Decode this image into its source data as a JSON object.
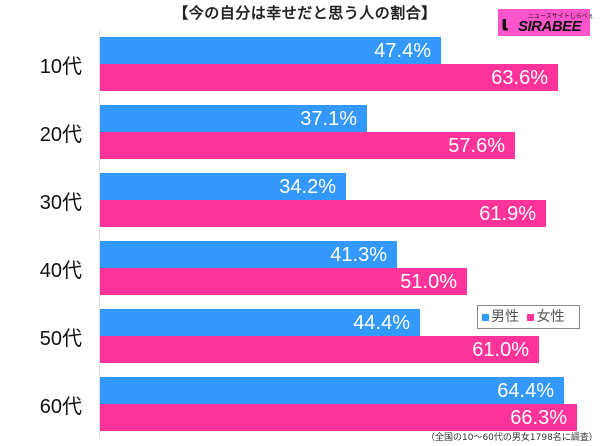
{
  "title": "【今の自分は幸せだと思う人の割合】",
  "logo": {
    "tagline": "ニュースサイトしらべぇ",
    "brand": "SIRABEE"
  },
  "legend": {
    "male": "男性",
    "female": "女性"
  },
  "note": "（全国の10〜60代の男女1798名に調査）",
  "colors": {
    "male": "#3399ff",
    "female": "#ff3399"
  },
  "rows": [
    {
      "label": "10代",
      "male": "47.4%",
      "female": "63.6%"
    },
    {
      "label": "20代",
      "male": "37.1%",
      "female": "57.6%"
    },
    {
      "label": "30代",
      "male": "34.2%",
      "female": "61.9%"
    },
    {
      "label": "40代",
      "male": "41.3%",
      "female": "51.0%"
    },
    {
      "label": "50代",
      "male": "44.4%",
      "female": "61.0%"
    },
    {
      "label": "60代",
      "male": "64.4%",
      "female": "66.3%"
    }
  ],
  "chart_data": {
    "type": "bar",
    "orientation": "horizontal",
    "title": "【今の自分は幸せだと思う人の割合】",
    "categories": [
      "10代",
      "20代",
      "30代",
      "40代",
      "50代",
      "60代"
    ],
    "series": [
      {
        "name": "男性",
        "color": "#3399ff",
        "values": [
          47.4,
          37.1,
          34.2,
          41.3,
          44.4,
          64.4
        ]
      },
      {
        "name": "女性",
        "color": "#ff3399",
        "values": [
          63.6,
          57.6,
          61.9,
          51.0,
          61.0,
          66.3
        ]
      }
    ],
    "xlabel": "",
    "ylabel": "",
    "unit": "%",
    "grid": false,
    "legend_position": "right, inside near 50代",
    "annotation": "（全国の10〜60代の男女1798名に調査）"
  }
}
